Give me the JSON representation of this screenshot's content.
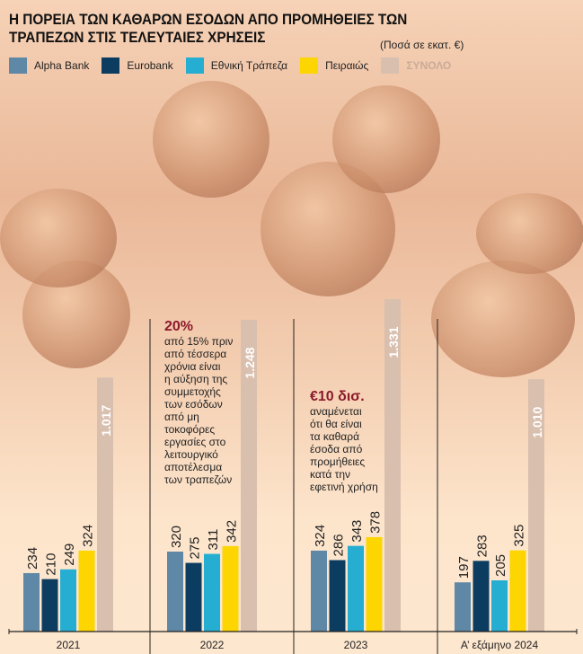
{
  "chart_data": {
    "type": "bar",
    "title": "Η ΠΟΡΕΙΑ ΤΩΝ ΚΑΘΑΡΩΝ ΕΣΟΔΩΝ ΑΠΟ ΠΡΟΜΗΘΕΙΕΣ ΤΩΝ ΤΡΑΠΕΖΩΝ ΣΤΙΣ ΤΕΛΕΥΤΑΙΕΣ ΧΡΗΣΕΙΣ",
    "unit": "(Ποσά σε εκατ. €)",
    "categories": [
      "2021",
      "2022",
      "2023",
      "Α’ εξάμηνο 2024"
    ],
    "series": [
      {
        "name": "Alpha Bank",
        "color": "#5f88a6",
        "values": [
          234,
          320,
          324,
          197
        ]
      },
      {
        "name": "Eurobank",
        "color": "#0c3d61",
        "values": [
          210,
          275,
          286,
          283
        ]
      },
      {
        "name": "Εθνική Τράπεζα",
        "color": "#25aed1",
        "values": [
          249,
          311,
          343,
          205
        ]
      },
      {
        "name": "Πειραιώς",
        "color": "#fdd500",
        "values": [
          324,
          342,
          378,
          325
        ]
      },
      {
        "name": "ΣΥΝΟΛΟ",
        "color": "#d9bfae",
        "values": [
          1017,
          1248,
          1331,
          1010
        ],
        "labels": [
          "1.017",
          "1.248",
          "1.331",
          "1.010"
        ]
      }
    ],
    "ylim": [
      0,
      1400
    ],
    "legend": "top-left"
  },
  "notes": [
    {
      "headline": "20%",
      "text": [
        "από 15% πριν",
        "από τέσσερα",
        "χρόνια είναι",
        "η αύξηση της",
        "συμμετοχής",
        "των εσόδων",
        "από μη",
        "τοκοφόρες",
        "εργασίες στο",
        "λειτουργικό",
        "αποτέλεσμα",
        "των τραπεζών"
      ]
    },
    {
      "headline": "€10 δισ.",
      "text": [
        "αναμένεται",
        "ότι θα είναι",
        "τα καθαρά",
        "έσοδα από",
        "προμήθειες",
        "κατά την",
        "εφετινή χρήση"
      ]
    }
  ]
}
